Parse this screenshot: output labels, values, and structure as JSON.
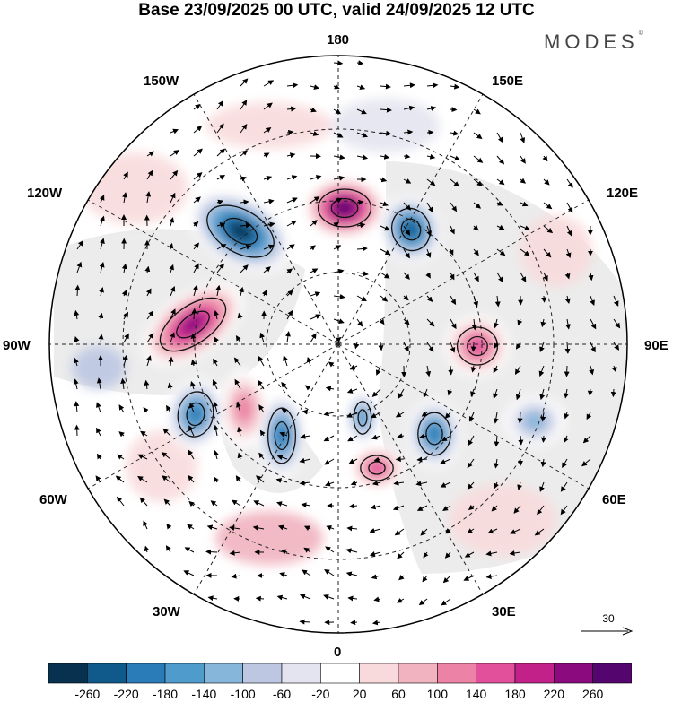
{
  "header": {
    "title": "Base 23/09/2025 00 UTC, valid 24/09/2025 12 UTC",
    "brand": "MODES",
    "brand_mark": "©"
  },
  "map": {
    "projection": "north-polar-stereographic",
    "longitude_labels": {
      "top": "180",
      "bottom": "0",
      "left": "90W",
      "right": "90E",
      "upper_left": "150W",
      "upper_right": "150E",
      "mid_upper_left": "120W",
      "mid_upper_right": "120E",
      "lower_left": "60W",
      "lower_right": "60E",
      "bottom_left": "30W",
      "bottom_right": "30E"
    },
    "anomalies": [
      {
        "name": "negative-anomaly-northeast-pacific",
        "value": -260
      },
      {
        "name": "positive-anomaly-east-siberian-sea",
        "value": 260
      },
      {
        "name": "negative-anomaly-east-siberia",
        "value": -220
      },
      {
        "name": "positive-anomaly-canada",
        "value": 220
      },
      {
        "name": "positive-anomaly-central-siberia",
        "value": 140
      },
      {
        "name": "negative-anomaly-labrador",
        "value": -180
      },
      {
        "name": "negative-anomaly-greenland-sea",
        "value": -180
      },
      {
        "name": "positive-anomaly-greenland",
        "value": 100
      },
      {
        "name": "positive-anomaly-scandinavia",
        "value": 140
      },
      {
        "name": "negative-anomaly-barents",
        "value": -140
      },
      {
        "name": "negative-anomaly-west-siberia",
        "value": -180
      },
      {
        "name": "negative-anomaly-ural",
        "value": -100
      }
    ],
    "wind_reference": {
      "label": "30"
    }
  },
  "legend": {
    "colors": [
      "#08304f",
      "#0f5a8a",
      "#2a7cb8",
      "#4f9bcc",
      "#86b6da",
      "#bdc7e2",
      "#e3e4f0",
      "#ffffff",
      "#f8dadc",
      "#f1b3bf",
      "#ec83a6",
      "#e2509c",
      "#c2218a",
      "#8b0b7f",
      "#54066e"
    ],
    "labels": [
      "-260",
      "-220",
      "-180",
      "-140",
      "-100",
      "-60",
      "-20",
      "20",
      "60",
      "100",
      "140",
      "180",
      "220",
      "260"
    ]
  }
}
